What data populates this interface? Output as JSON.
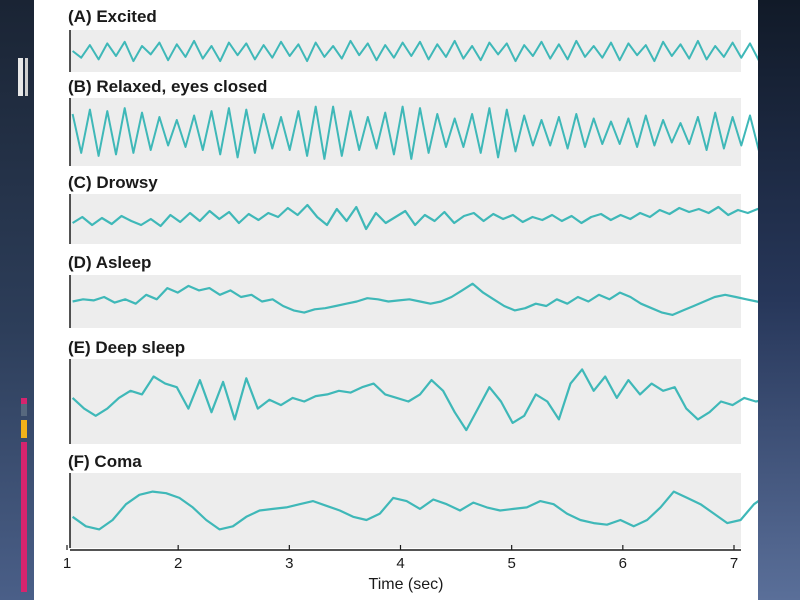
{
  "chart_data": {
    "type": "line",
    "xlabel": "Time (sec)",
    "xlim": [
      1,
      7.3
    ],
    "x_ticks": [
      "1",
      "2",
      "3",
      "4",
      "5",
      "6",
      "7"
    ],
    "panels": [
      {
        "title": "(A) Excited",
        "series": [
          0.0,
          -0.4,
          0.35,
          -0.5,
          0.45,
          -0.3,
          0.55,
          -0.6,
          0.3,
          -0.2,
          0.5,
          -0.55,
          0.4,
          -0.35,
          0.6,
          -0.45,
          0.3,
          -0.6,
          0.5,
          -0.25,
          0.45,
          -0.5,
          0.35,
          -0.4,
          0.55,
          -0.3,
          0.4,
          -0.6,
          0.5,
          -0.35,
          0.3,
          -0.45,
          0.6,
          -0.25,
          0.45,
          -0.55,
          0.35,
          -0.4,
          0.5,
          -0.3,
          0.55,
          -0.5,
          0.4,
          -0.35,
          0.6,
          -0.45,
          0.3,
          -0.55,
          0.5,
          -0.2,
          0.45,
          -0.6,
          0.35,
          -0.3,
          0.55,
          -0.45,
          0.4,
          -0.5,
          0.6,
          -0.35,
          0.3,
          -0.4,
          0.5,
          -0.55,
          0.45,
          -0.25,
          0.35,
          -0.6,
          0.55,
          -0.3,
          0.4,
          -0.45,
          0.6,
          -0.5,
          0.3,
          -0.35,
          0.5,
          -0.4,
          0.45,
          -0.55,
          0.35
        ]
      },
      {
        "title": "(B) Relaxed, eyes closed",
        "series": [
          0.6,
          -0.7,
          0.75,
          -0.8,
          0.7,
          -0.75,
          0.8,
          -0.7,
          0.65,
          -0.6,
          0.5,
          -0.45,
          0.4,
          -0.5,
          0.55,
          -0.6,
          0.7,
          -0.75,
          0.8,
          -0.85,
          0.75,
          -0.7,
          0.6,
          -0.55,
          0.5,
          -0.6,
          0.7,
          -0.8,
          0.85,
          -0.9,
          0.85,
          -0.8,
          0.7,
          -0.6,
          0.5,
          -0.55,
          0.65,
          -0.75,
          0.85,
          -0.9,
          0.8,
          -0.7,
          0.6,
          -0.5,
          0.45,
          -0.5,
          0.6,
          -0.7,
          0.8,
          -0.85,
          0.75,
          -0.65,
          0.55,
          -0.45,
          0.4,
          -0.45,
          0.5,
          -0.55,
          0.6,
          -0.5,
          0.45,
          -0.4,
          0.35,
          -0.4,
          0.45,
          -0.5,
          0.55,
          -0.45,
          0.4,
          -0.35,
          0.3,
          -0.4,
          0.5,
          -0.6,
          0.65,
          -0.55,
          0.5,
          -0.45,
          0.55,
          -0.6,
          0.5
        ]
      },
      {
        "title": "(C) Drowsy",
        "series": [
          -0.2,
          0.1,
          -0.3,
          0.05,
          -0.25,
          0.15,
          -0.1,
          -0.3,
          0.0,
          -0.35,
          0.2,
          -0.15,
          0.3,
          -0.1,
          0.4,
          0.0,
          0.35,
          -0.2,
          0.25,
          -0.05,
          0.3,
          0.1,
          0.55,
          0.2,
          0.7,
          0.1,
          -0.3,
          0.5,
          -0.1,
          0.6,
          -0.5,
          0.3,
          -0.2,
          0.1,
          0.4,
          -0.3,
          0.2,
          -0.1,
          0.35,
          -0.2,
          0.15,
          0.3,
          -0.1,
          0.25,
          0.0,
          0.2,
          -0.15,
          0.1,
          -0.05,
          0.2,
          -0.1,
          0.15,
          -0.2,
          0.1,
          0.25,
          -0.05,
          0.2,
          0.0,
          0.3,
          0.1,
          0.45,
          0.25,
          0.55,
          0.35,
          0.5,
          0.3,
          0.6,
          0.2,
          0.45,
          0.3,
          0.5,
          0.4
        ]
      },
      {
        "title": "(D) Asleep",
        "series": [
          0.0,
          0.1,
          0.05,
          0.2,
          -0.05,
          0.1,
          -0.1,
          0.3,
          0.1,
          0.6,
          0.4,
          0.7,
          0.5,
          0.6,
          0.3,
          0.5,
          0.2,
          0.3,
          0.0,
          0.1,
          -0.2,
          -0.4,
          -0.5,
          -0.35,
          -0.3,
          -0.2,
          -0.1,
          0.0,
          0.15,
          0.1,
          0.0,
          0.05,
          0.1,
          0.0,
          -0.1,
          0.0,
          0.2,
          0.5,
          0.8,
          0.4,
          0.1,
          -0.2,
          -0.4,
          -0.3,
          -0.1,
          -0.2,
          0.1,
          -0.1,
          0.2,
          0.0,
          0.3,
          0.1,
          0.4,
          0.2,
          -0.1,
          -0.3,
          -0.5,
          -0.6,
          -0.4,
          -0.2,
          0.0,
          0.2,
          0.3,
          0.2,
          0.1,
          0.0,
          -0.1
        ]
      },
      {
        "title": "(E) Deep sleep",
        "series": [
          0.1,
          -0.2,
          -0.4,
          -0.2,
          0.1,
          0.3,
          0.2,
          0.7,
          0.5,
          0.4,
          -0.2,
          0.6,
          -0.3,
          0.55,
          -0.5,
          0.65,
          -0.2,
          0.05,
          -0.1,
          0.1,
          0.0,
          0.15,
          0.2,
          0.3,
          0.25,
          0.4,
          0.5,
          0.2,
          0.1,
          0.0,
          0.2,
          0.6,
          0.3,
          -0.3,
          -0.8,
          -0.2,
          0.4,
          0.0,
          -0.6,
          -0.4,
          0.2,
          0.0,
          -0.5,
          0.5,
          0.9,
          0.3,
          0.7,
          0.1,
          0.6,
          0.2,
          0.5,
          0.3,
          0.4,
          -0.2,
          -0.5,
          -0.3,
          0.0,
          -0.1,
          0.1,
          0.0,
          0.05
        ]
      },
      {
        "title": "(F) Coma",
        "series": [
          -0.2,
          -0.5,
          -0.6,
          -0.3,
          0.2,
          0.5,
          0.6,
          0.55,
          0.4,
          0.1,
          -0.3,
          -0.6,
          -0.5,
          -0.2,
          0.0,
          0.05,
          0.1,
          0.2,
          0.3,
          0.15,
          0.0,
          -0.2,
          -0.3,
          -0.1,
          0.4,
          0.3,
          0.05,
          0.35,
          0.2,
          0.0,
          0.25,
          0.1,
          0.0,
          0.05,
          0.1,
          0.3,
          0.2,
          -0.1,
          -0.3,
          -0.4,
          -0.45,
          -0.3,
          -0.5,
          -0.3,
          0.1,
          0.6,
          0.4,
          0.2,
          -0.1,
          -0.4,
          -0.3,
          0.2,
          0.5
        ]
      }
    ]
  },
  "colors": {
    "trace": "#3fb8b8",
    "panel_bg": "#ededed",
    "axis": "#1a1a1a"
  }
}
